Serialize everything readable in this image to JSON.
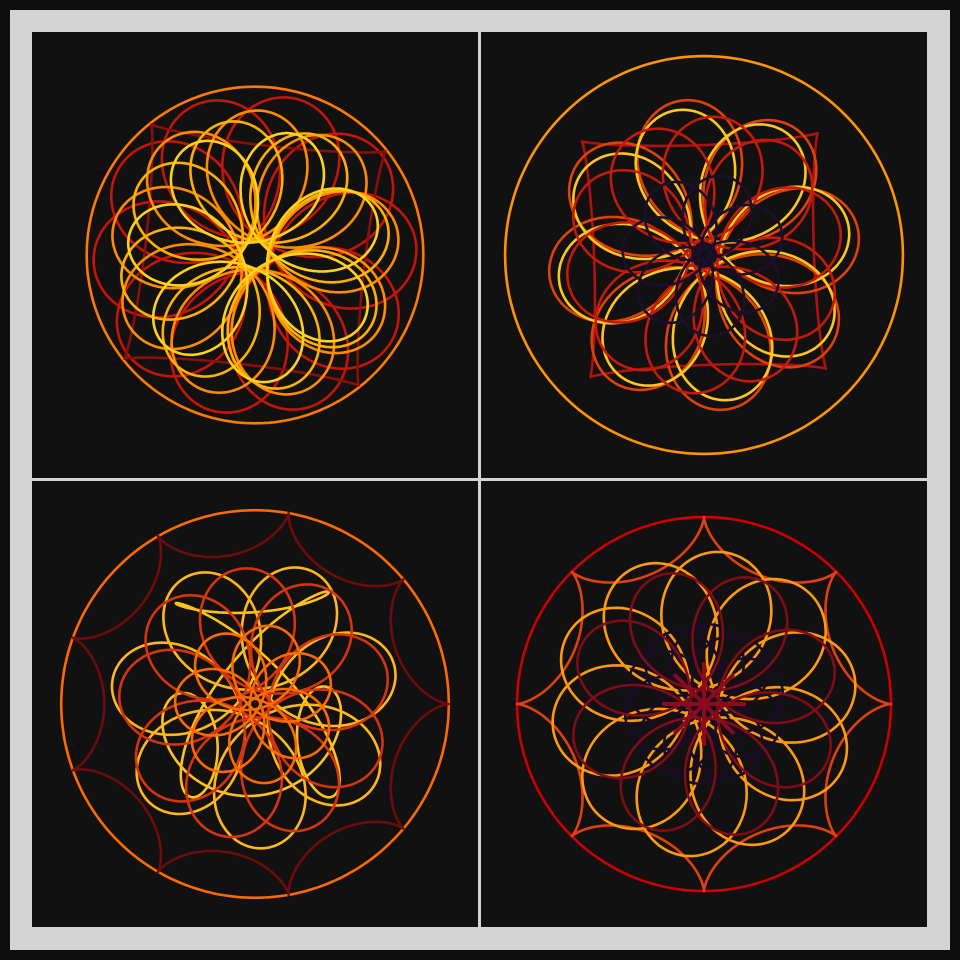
{
  "title": "",
  "colors": {
    "frame": "#d4d4d4",
    "panel_background": "#111111",
    "outer_background": "#0e0e0e"
  },
  "panels": [
    {
      "name": "rosette-top-left",
      "curves": [
        {
          "kind": "circle",
          "color": "#ff7a00"
        },
        {
          "kind": "rose-loops",
          "color": "#c41508",
          "petals": 8
        },
        {
          "kind": "diamond",
          "color": "#8a0f0a"
        },
        {
          "kind": "rose-loops",
          "color": "#ff8c00",
          "petals": 7
        },
        {
          "kind": "rose-loops",
          "color": "#ffb000",
          "petals": 6
        },
        {
          "kind": "rose-loops",
          "color": "#ffd21e",
          "petals": 5
        }
      ]
    },
    {
      "name": "rosette-top-right",
      "curves": [
        {
          "kind": "circle",
          "color": "#ff9400"
        },
        {
          "kind": "diamond",
          "color": "#b01010"
        },
        {
          "kind": "rose-loops",
          "color": "#e0400a",
          "petals": 6
        },
        {
          "kind": "rose-loops",
          "color": "#ffc61e",
          "petals": 6
        },
        {
          "kind": "rose-loops",
          "color": "#c41a08",
          "petals": 8
        },
        {
          "kind": "small-loops",
          "color": "#1c0e2c",
          "petals": 5
        }
      ]
    },
    {
      "name": "rosette-bottom-left",
      "curves": [
        {
          "kind": "circle",
          "color": "#ff6a00"
        },
        {
          "kind": "hypocycloid",
          "color": "#6e0c0c",
          "cusps": 9
        },
        {
          "kind": "triangle",
          "color": "#ffc21c"
        },
        {
          "kind": "rose-loops",
          "color": "#ffb71a",
          "petals": 5
        },
        {
          "kind": "rose-loops",
          "color": "#d43410",
          "petals": 7
        },
        {
          "kind": "small-loops",
          "color": "#ff6a00",
          "petals": 5
        }
      ]
    },
    {
      "name": "rosette-bottom-right",
      "curves": [
        {
          "kind": "circle",
          "color": "#cc0000"
        },
        {
          "kind": "hypocycloid",
          "color": "#e04010",
          "cusps": 8
        },
        {
          "kind": "rose-loops",
          "color": "#ff9a10",
          "petals": 8
        },
        {
          "kind": "small-loops",
          "color": "#1a0a28",
          "petals": 8
        },
        {
          "kind": "rose-loops",
          "color": "#800c18",
          "petals": 6
        },
        {
          "kind": "star-lines",
          "color": "#8b0a1c",
          "petals": 8
        }
      ]
    }
  ]
}
